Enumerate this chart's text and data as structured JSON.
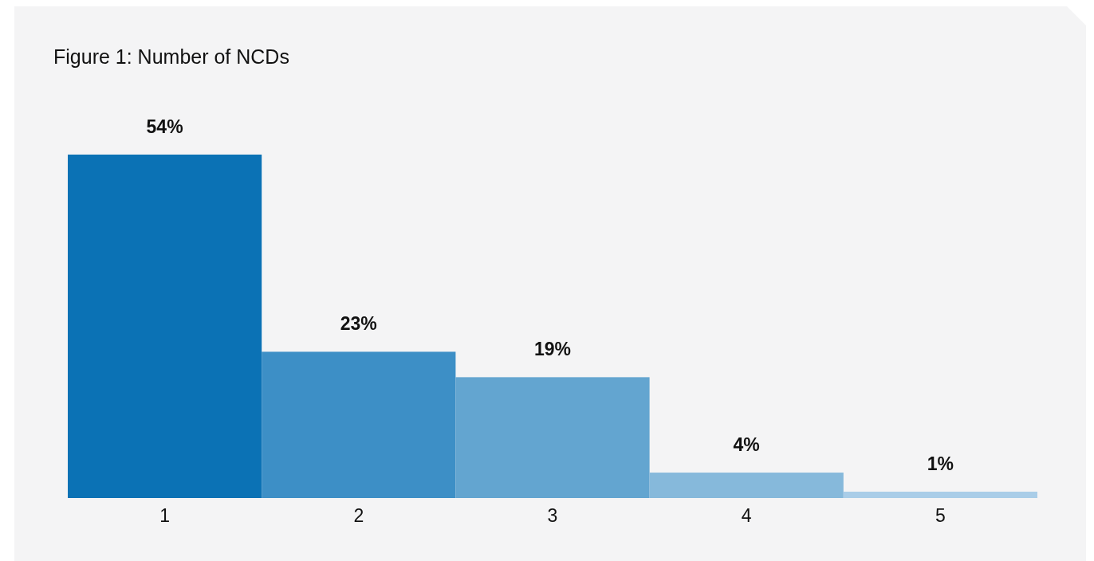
{
  "chart_data": {
    "type": "bar",
    "title": "Figure 1: Number of NCDs",
    "categories": [
      "1",
      "2",
      "3",
      "4",
      "5"
    ],
    "values": [
      54,
      23,
      19,
      4,
      1
    ],
    "colors": [
      "#0b72b5",
      "#3d8fc6",
      "#63a5d0",
      "#86b9db",
      "#a9cde8"
    ],
    "value_labels": [
      "54%",
      "23%",
      "19%",
      "4%",
      "1%"
    ]
  }
}
